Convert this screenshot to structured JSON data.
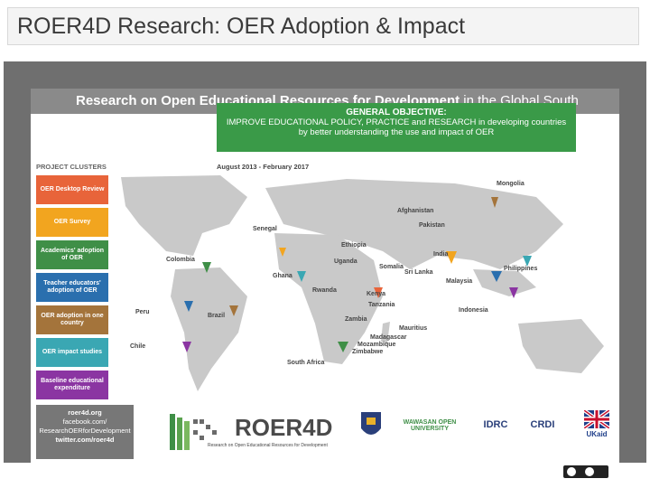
{
  "title": "ROER4D Research: OER Adoption & Impact",
  "poster": {
    "header_bold": "Research on Open Educational Resources for Development",
    "header_light": "in the Global South",
    "objective_title": "GENERAL OBJECTIVE:",
    "objective_line1": "IMPROVE EDUCATIONAL POLICY, PRACTICE and RESEARCH in developing countries",
    "objective_line2": "by better understanding the use and impact of OER",
    "dates": "August 2013 - February 2017",
    "clusters_heading": "PROJECT CLUSTERS",
    "clusters": [
      {
        "label": "OER Desktop Review",
        "color": "#e8643a"
      },
      {
        "label": "OER Survey",
        "color": "#f2a51f"
      },
      {
        "label": "Academics' adoption of OER",
        "color": "#3f8f47"
      },
      {
        "label": "Teacher educators' adoption of OER",
        "color": "#2a6fae"
      },
      {
        "label": "OER adoption in one country",
        "color": "#a4743b"
      },
      {
        "label": "OER impact studies",
        "color": "#3aa7b3"
      },
      {
        "label": "Baseline educational expenditure",
        "color": "#8b35a2"
      }
    ],
    "places": [
      "Mongolia",
      "Afghanistan",
      "Pakistan",
      "India",
      "Senegal",
      "Ethiopia",
      "Uganda",
      "Somalia",
      "Sri Lanka",
      "Philippines",
      "Colombia",
      "Ghana",
      "Malaysia",
      "Rwanda",
      "Kenya",
      "Indonesia",
      "Peru",
      "Brazil",
      "Tanzania",
      "Zambia",
      "Mauritius",
      "Chile",
      "Madagascar",
      "Mozambique",
      "Zimbabwe",
      "South Africa"
    ],
    "links": {
      "site": "roer4d.org",
      "facebook": "facebook.com/",
      "facebook_page": "ResearchOERforDevelopment",
      "twitter": "twitter.com/roer4d"
    },
    "logo_text": "ROER4D",
    "logo_sub": "Research on Open Educational Resources for Development",
    "partners": [
      "WAWASAN OPEN UNIVERSITY",
      "IDRC",
      "CRDI",
      "UKaid"
    ]
  }
}
